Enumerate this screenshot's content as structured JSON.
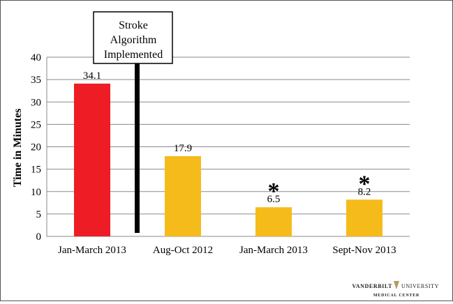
{
  "chart_data": {
    "type": "bar",
    "title": "",
    "xlabel": "",
    "ylabel": "Time in Minutes",
    "ylim": [
      0,
      40
    ],
    "yticks": [
      0,
      5,
      10,
      15,
      20,
      25,
      30,
      35,
      40
    ],
    "grid": true,
    "categories": [
      "Jan-March 2013",
      "Aug-Oct 2012",
      "Jan-March 2013",
      "Sept-Nov 2013"
    ],
    "values": [
      34.1,
      17.9,
      6.5,
      8.2
    ],
    "value_labels": [
      "34.1",
      "17.9",
      "6.5",
      "8.2"
    ],
    "colors": [
      "#ee1c24",
      "#f5bb1a",
      "#f5bb1a",
      "#f5bb1a"
    ],
    "significance": [
      false,
      false,
      true,
      true
    ],
    "significance_marker": "*",
    "annotation": {
      "lines": [
        "Stroke",
        "Algorithm",
        "Implemented"
      ],
      "between_categories": [
        0,
        1
      ],
      "color": "#000000"
    }
  },
  "branding": {
    "logo_name": "VANDERBILT",
    "logo_suffix": "UNIVERSITY",
    "logo_sub": "MEDICAL CENTER",
    "logo_color": "#b49a5e"
  }
}
